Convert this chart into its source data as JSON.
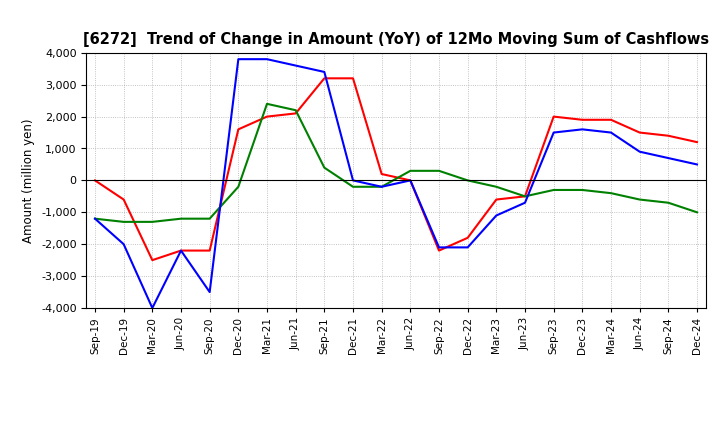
{
  "title": "[6272]  Trend of Change in Amount (YoY) of 12Mo Moving Sum of Cashflows",
  "ylabel": "Amount (million yen)",
  "xlabels": [
    "Sep-19",
    "Dec-19",
    "Mar-20",
    "Jun-20",
    "Sep-20",
    "Dec-20",
    "Mar-21",
    "Jun-21",
    "Sep-21",
    "Dec-21",
    "Mar-22",
    "Jun-22",
    "Sep-22",
    "Dec-22",
    "Mar-23",
    "Jun-23",
    "Sep-23",
    "Dec-23",
    "Mar-24",
    "Jun-24",
    "Sep-24",
    "Dec-24"
  ],
  "operating": [
    0,
    -600,
    -2500,
    -2200,
    -2200,
    1600,
    2000,
    2100,
    3200,
    3200,
    200,
    0,
    -2200,
    -1800,
    -600,
    -500,
    2000,
    1900,
    1900,
    1500,
    1400,
    1200
  ],
  "investing": [
    -1200,
    -1300,
    -1300,
    -1200,
    -1200,
    -200,
    2400,
    2200,
    400,
    -200,
    -200,
    300,
    300,
    0,
    -200,
    -500,
    -300,
    -300,
    -400,
    -600,
    -700,
    -1000
  ],
  "free": [
    -1200,
    -2000,
    -4000,
    -2200,
    -3500,
    3800,
    3800,
    3600,
    3400,
    0,
    -200,
    0,
    -2100,
    -2100,
    -1100,
    -700,
    1500,
    1600,
    1500,
    900,
    700,
    500
  ],
  "ylim": [
    -4000,
    4000
  ],
  "yticks": [
    -4000,
    -3000,
    -2000,
    -1000,
    0,
    1000,
    2000,
    3000,
    4000
  ],
  "operating_color": "#ff0000",
  "investing_color": "#008000",
  "free_color": "#0000ff",
  "background_color": "#ffffff",
  "grid_color": "#b0b0b0"
}
